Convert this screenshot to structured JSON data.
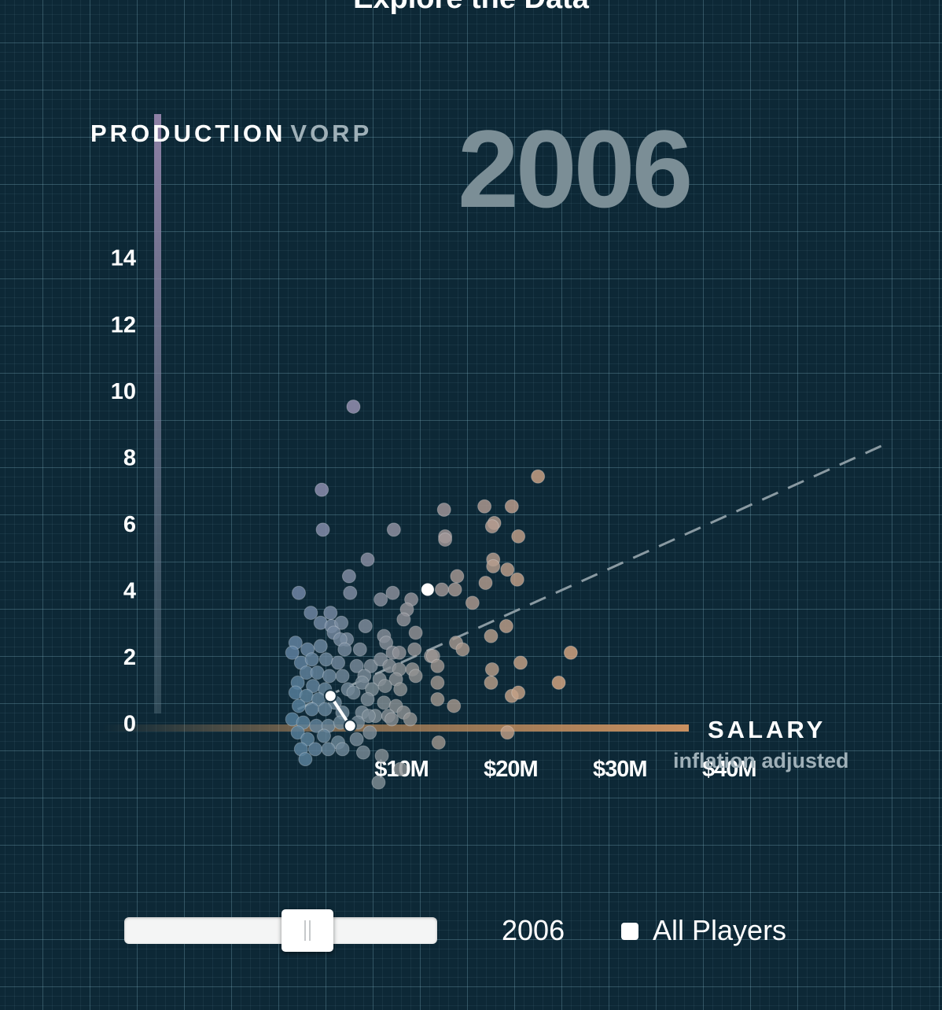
{
  "page": {
    "title": "Explore the Data"
  },
  "chart_data": {
    "type": "scatter",
    "y_title": "PRODUCTION",
    "y_subtitle": "VORP",
    "x_title": "SALARY",
    "x_subtitle": "inflation adjusted",
    "year": "2006",
    "xlim": [
      -12,
      42
    ],
    "ylim": [
      -1.5,
      16.5
    ],
    "y_ticks": [
      {
        "value": 0,
        "label": "0"
      },
      {
        "value": 2,
        "label": "2"
      },
      {
        "value": 4,
        "label": "4"
      },
      {
        "value": 6,
        "label": "6"
      },
      {
        "value": 8,
        "label": "8"
      },
      {
        "value": 10,
        "label": "10"
      },
      {
        "value": 12,
        "label": "12"
      },
      {
        "value": 14,
        "label": "14"
      }
    ],
    "x_ticks": [
      {
        "value": 10,
        "label": "$10M"
      },
      {
        "value": 20,
        "label": "$20M"
      },
      {
        "value": 30,
        "label": "$30M"
      },
      {
        "value": 40,
        "label": "$40M"
      }
    ],
    "trend_line": {
      "from": [
        0.5,
        0.4
      ],
      "to": [
        54.5,
        8.4
      ]
    },
    "highlighted_path": [
      [
        3.5,
        0.8
      ],
      [
        5.3,
        -0.1
      ]
    ],
    "highlighted_point": [
      12.4,
      4.0
    ],
    "points": [
      [
        5.6,
        9.5
      ],
      [
        2.7,
        7.0
      ],
      [
        2.8,
        5.8
      ],
      [
        9.3,
        5.8
      ],
      [
        6.9,
        4.9
      ],
      [
        5.2,
        4.4
      ],
      [
        5.3,
        3.9
      ],
      [
        0.6,
        3.9
      ],
      [
        8.1,
        3.7
      ],
      [
        9.2,
        3.9
      ],
      [
        10.9,
        3.7
      ],
      [
        10.5,
        3.4
      ],
      [
        10.2,
        3.1
      ],
      [
        1.7,
        3.3
      ],
      [
        3.5,
        3.3
      ],
      [
        2.6,
        3.0
      ],
      [
        3.6,
        2.9
      ],
      [
        4.5,
        3.0
      ],
      [
        3.8,
        2.7
      ],
      [
        5.0,
        2.5
      ],
      [
        6.7,
        2.9
      ],
      [
        11.3,
        2.7
      ],
      [
        8.4,
        2.6
      ],
      [
        8.6,
        2.4
      ],
      [
        0.3,
        2.4
      ],
      [
        1.4,
        2.2
      ],
      [
        2.6,
        2.3
      ],
      [
        4.4,
        2.5
      ],
      [
        4.8,
        2.2
      ],
      [
        6.2,
        2.2
      ],
      [
        9.2,
        2.1
      ],
      [
        9.8,
        2.1
      ],
      [
        11.2,
        2.2
      ],
      [
        12.7,
        2.0
      ],
      [
        0.0,
        2.1
      ],
      [
        0.8,
        1.8
      ],
      [
        1.8,
        1.9
      ],
      [
        3.1,
        1.9
      ],
      [
        4.2,
        1.8
      ],
      [
        5.9,
        1.7
      ],
      [
        7.2,
        1.7
      ],
      [
        8.1,
        1.9
      ],
      [
        8.9,
        1.7
      ],
      [
        9.8,
        1.6
      ],
      [
        11.0,
        1.6
      ],
      [
        1.3,
        1.5
      ],
      [
        2.3,
        1.5
      ],
      [
        3.4,
        1.4
      ],
      [
        4.6,
        1.4
      ],
      [
        6.6,
        1.4
      ],
      [
        8.0,
        1.3
      ],
      [
        9.5,
        1.3
      ],
      [
        11.3,
        1.4
      ],
      [
        0.5,
        1.2
      ],
      [
        1.9,
        1.1
      ],
      [
        3.0,
        1.0
      ],
      [
        5.1,
        1.0
      ],
      [
        6.4,
        1.2
      ],
      [
        7.3,
        1.0
      ],
      [
        8.5,
        1.1
      ],
      [
        9.9,
        1.0
      ],
      [
        0.3,
        0.9
      ],
      [
        1.3,
        0.8
      ],
      [
        2.4,
        0.7
      ],
      [
        3.9,
        0.6
      ],
      [
        5.6,
        0.9
      ],
      [
        6.9,
        0.7
      ],
      [
        8.4,
        0.6
      ],
      [
        9.5,
        0.5
      ],
      [
        0.6,
        0.5
      ],
      [
        1.8,
        0.4
      ],
      [
        3.0,
        0.4
      ],
      [
        4.6,
        0.3
      ],
      [
        6.4,
        0.3
      ],
      [
        7.6,
        0.2
      ],
      [
        8.8,
        0.2
      ],
      [
        10.2,
        0.3
      ],
      [
        10.8,
        0.1
      ],
      [
        0.0,
        0.1
      ],
      [
        1.0,
        0.0
      ],
      [
        2.2,
        -0.1
      ],
      [
        3.3,
        -0.1
      ],
      [
        4.4,
        0.0
      ],
      [
        6.0,
        0.0
      ],
      [
        7.0,
        0.2
      ],
      [
        9.1,
        0.1
      ],
      [
        0.5,
        -0.3
      ],
      [
        1.4,
        -0.5
      ],
      [
        2.9,
        -0.4
      ],
      [
        4.2,
        -0.6
      ],
      [
        5.9,
        -0.5
      ],
      [
        7.1,
        -0.3
      ],
      [
        0.8,
        -0.8
      ],
      [
        2.1,
        -0.8
      ],
      [
        3.3,
        -0.8
      ],
      [
        6.5,
        -0.9
      ],
      [
        1.2,
        -1.1
      ],
      [
        4.6,
        -0.8
      ],
      [
        8.2,
        -1.0
      ],
      [
        9.9,
        -1.4
      ],
      [
        7.9,
        -1.8
      ],
      [
        13.4,
        -0.6
      ],
      [
        13.9,
        6.4
      ],
      [
        14.0,
        5.6
      ],
      [
        14.0,
        5.5
      ],
      [
        17.6,
        6.5
      ],
      [
        18.5,
        6.0
      ],
      [
        20.1,
        6.5
      ],
      [
        20.7,
        5.6
      ],
      [
        18.3,
        5.9
      ],
      [
        18.4,
        4.9
      ],
      [
        18.4,
        4.7
      ],
      [
        15.1,
        4.4
      ],
      [
        14.9,
        4.0
      ],
      [
        13.7,
        4.0
      ],
      [
        16.5,
        3.6
      ],
      [
        19.7,
        4.6
      ],
      [
        20.6,
        4.3
      ],
      [
        17.7,
        4.2
      ],
      [
        22.5,
        7.4
      ],
      [
        20.9,
        1.8
      ],
      [
        19.6,
        2.9
      ],
      [
        18.2,
        2.6
      ],
      [
        15.0,
        2.4
      ],
      [
        15.6,
        2.2
      ],
      [
        12.9,
        2.0
      ],
      [
        13.3,
        1.7
      ],
      [
        18.3,
        1.6
      ],
      [
        18.2,
        1.2
      ],
      [
        13.3,
        1.2
      ],
      [
        13.3,
        0.7
      ],
      [
        14.8,
        0.5
      ],
      [
        20.1,
        0.8
      ],
      [
        20.7,
        0.9
      ],
      [
        24.4,
        1.2
      ],
      [
        25.5,
        2.1
      ],
      [
        19.7,
        -0.3
      ]
    ]
  },
  "controls": {
    "slider_value": 0.58,
    "year_display": "2006",
    "toggle_label": "All Players",
    "toggle_checked": false
  }
}
